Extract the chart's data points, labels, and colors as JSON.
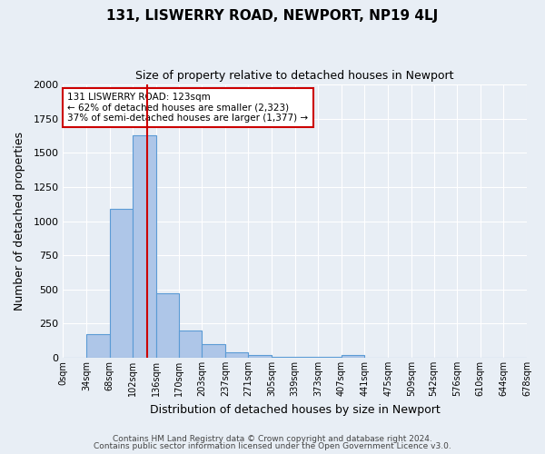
{
  "title": "131, LISWERRY ROAD, NEWPORT, NP19 4LJ",
  "subtitle": "Size of property relative to detached houses in Newport",
  "xlabel": "Distribution of detached houses by size in Newport",
  "ylabel": "Number of detached properties",
  "footnote1": "Contains HM Land Registry data © Crown copyright and database right 2024.",
  "footnote2": "Contains public sector information licensed under the Open Government Licence v3.0.",
  "annotation_line1": "131 LISWERRY ROAD: 123sqm",
  "annotation_line2": "← 62% of detached houses are smaller (2,323)",
  "annotation_line3": "37% of semi-detached houses are larger (1,377) →",
  "bar_edges": [
    0,
    34,
    68,
    102,
    136,
    170,
    203,
    237,
    271,
    305,
    339,
    373,
    407,
    441,
    475,
    509,
    542,
    576,
    610,
    644,
    678
  ],
  "bar_heights": [
    0,
    170,
    1090,
    1630,
    470,
    200,
    100,
    40,
    20,
    5,
    5,
    5,
    20,
    0,
    0,
    0,
    0,
    0,
    0,
    0
  ],
  "bar_color": "#aec6e8",
  "bar_edge_color": "#5b9bd5",
  "highlight_x": 123,
  "highlight_color": "#cc0000",
  "ylim": [
    0,
    2000
  ],
  "xlim": [
    0,
    678
  ],
  "bg_color": "#e8eef5",
  "grid_color": "#ffffff",
  "tick_labels": [
    "0sqm",
    "34sqm",
    "68sqm",
    "102sqm",
    "136sqm",
    "170sqm",
    "203sqm",
    "237sqm",
    "271sqm",
    "305sqm",
    "339sqm",
    "373sqm",
    "407sqm",
    "441sqm",
    "475sqm",
    "509sqm",
    "542sqm",
    "576sqm",
    "610sqm",
    "644sqm",
    "678sqm"
  ]
}
